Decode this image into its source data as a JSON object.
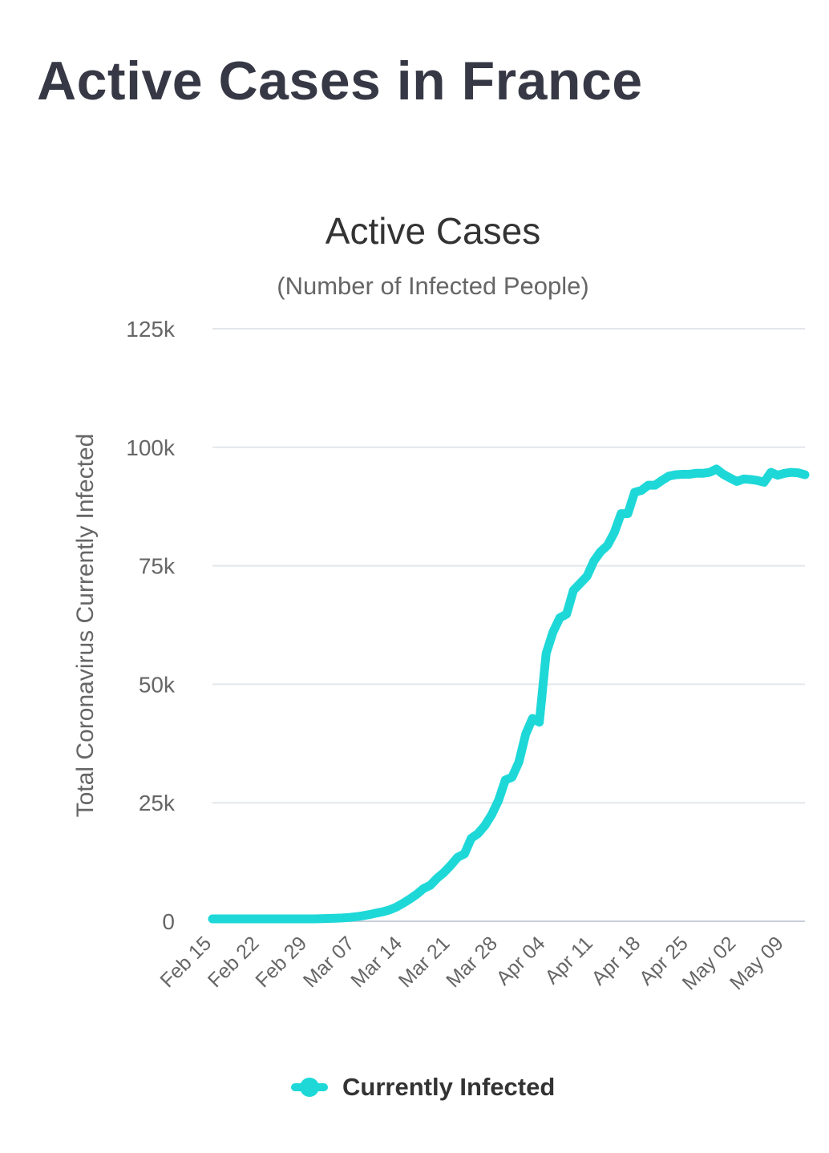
{
  "page": {
    "title": "Active Cases in France"
  },
  "chart_data": {
    "type": "line",
    "title": "Active Cases",
    "subtitle": "(Number of Infected People)",
    "xlabel": "",
    "ylabel": "Total Coronavirus Currently Infected",
    "ylim": [
      0,
      125000
    ],
    "yticks": [
      0,
      25000,
      50000,
      75000,
      100000,
      125000
    ],
    "ytick_labels": [
      "0",
      "25k",
      "50k",
      "75k",
      "100k",
      "125k"
    ],
    "xtick_labels": [
      "Feb 15",
      "Feb 22",
      "Feb 29",
      "Mar 07",
      "Mar 14",
      "Mar 21",
      "Mar 28",
      "Apr 04",
      "Apr 11",
      "Apr 18",
      "Apr 25",
      "May 02",
      "May 09"
    ],
    "grid": true,
    "legend_position": "bottom-center",
    "color": "#1ED8D8",
    "series": [
      {
        "name": "Currently Infected",
        "start_date": "Feb 15",
        "values": [
          500,
          500,
          500,
          500,
          500,
          500,
          500,
          500,
          500,
          500,
          500,
          500,
          500,
          500,
          500,
          500,
          550,
          600,
          650,
          700,
          800,
          950,
          1150,
          1400,
          1700,
          2000,
          2400,
          3000,
          3800,
          4700,
          5700,
          6900,
          7600,
          9100,
          10300,
          11800,
          13500,
          14200,
          17500,
          18500,
          20200,
          22500,
          25500,
          29800,
          30400,
          33600,
          39500,
          42800,
          42000,
          56500,
          61000,
          64000,
          64800,
          69800,
          71300,
          72800,
          76000,
          78000,
          79300,
          82000,
          86000,
          86000,
          90500,
          90900,
          92000,
          92000,
          93000,
          93900,
          94200,
          94300,
          94300,
          94500,
          94500,
          94700,
          95400,
          94300,
          93500,
          92800,
          93300,
          93200,
          93000,
          92600,
          94700,
          94100,
          94500,
          94700,
          94600,
          94200
        ]
      }
    ]
  }
}
